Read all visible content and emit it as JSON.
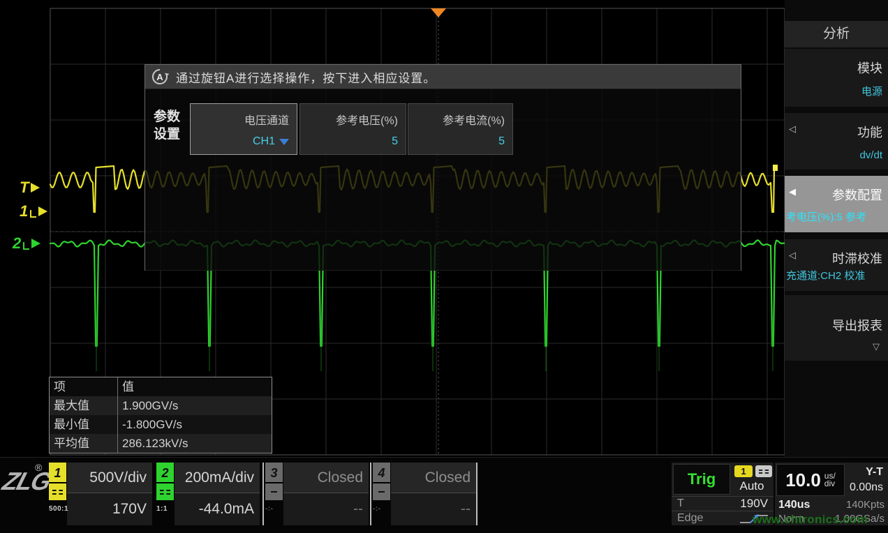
{
  "dialog": {
    "knob": "A",
    "header_text": "通过旋钮A进行选择操作，按下进入相应设置。",
    "param_label_1": "参数",
    "param_label_2": "设置",
    "buttons": [
      {
        "label": "电压通道",
        "value": "CH1"
      },
      {
        "label": "参考电压(%)",
        "value": "5"
      },
      {
        "label": "参考电流(%)",
        "value": "5"
      }
    ]
  },
  "sidebar": {
    "title": "分析",
    "items": [
      {
        "label": "模块",
        "value": "电源"
      },
      {
        "label": "功能",
        "value": "dv/dt"
      },
      {
        "label": "参数配置",
        "value": "考电压(%):5 参考"
      },
      {
        "label": "时滞校准",
        "value": "充通道:CH2 校准"
      },
      {
        "label": "导出报表",
        "value": ""
      }
    ]
  },
  "measure_table": {
    "headers": [
      "项",
      "值"
    ],
    "rows": [
      [
        "最大值",
        "1.900GV/s"
      ],
      [
        "最小值",
        "-1.800GV/s"
      ],
      [
        "平均值",
        "286.123kV/s"
      ]
    ]
  },
  "channels": [
    {
      "num": "1",
      "scale": "500V/div",
      "probe": "500:1",
      "offset": "170V",
      "color": "#e6df2a"
    },
    {
      "num": "2",
      "scale": "200mA/div",
      "probe": "1:1",
      "offset": "-44.0mA",
      "color": "#2fd32f"
    },
    {
      "num": "3",
      "scale": "Closed",
      "probe": "-:-",
      "offset": "--",
      "color": "#6a6a6a"
    },
    {
      "num": "4",
      "scale": "Closed",
      "probe": "-:-",
      "offset": "--",
      "color": "#6a6a6a"
    }
  ],
  "trigger": {
    "label": "Trig",
    "source": "1",
    "mode": "Auto",
    "level_label": "T",
    "level": "190V",
    "type": "Edge"
  },
  "timebase": {
    "scale": "10.0",
    "unit_line1": "us/",
    "unit_line2": "div",
    "display_mode": "Y-T",
    "delay": "0.00ns",
    "window": "140us",
    "memory": "140Kpts",
    "acq_mode": "Norm",
    "sample_rate": "1.00GSa/s"
  },
  "markers": {
    "trigger": "T",
    "ch1": "1",
    "ch2": "2"
  },
  "watermark": "www.chtronics.com",
  "logo": {
    "text": "ZLG",
    "reg": "®"
  },
  "colors": {
    "accent_cyan": "#45cfe8",
    "ch1_yellow": "#e6df2a",
    "ch2_green": "#2fd32f",
    "trigger_orange": "#ef8722",
    "trig_green": "#35e035",
    "watermark_green": "#1c741c"
  }
}
